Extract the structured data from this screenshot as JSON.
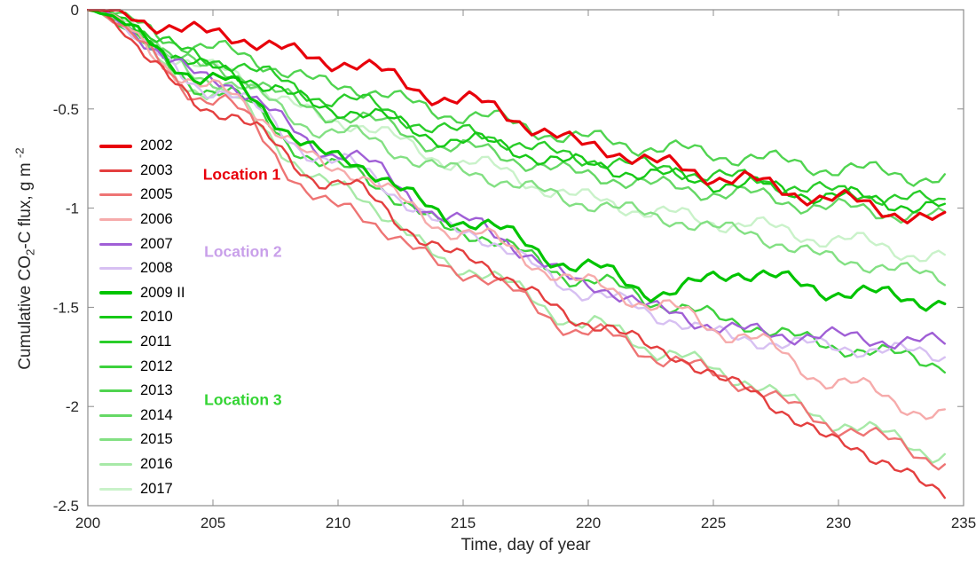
{
  "figure": {
    "background": "#ffffff"
  },
  "chart_data": {
    "type": "line",
    "title": "",
    "xlabel": "Time, day of year",
    "ylabel": "Cumulative CO2-C flux, g m-2",
    "ylabel_parts": {
      "pre": "Cumulative CO",
      "sub": "2",
      "mid": "-C flux, g m ",
      "sup": "-2"
    },
    "xlim": [
      200,
      235
    ],
    "ylim": [
      -2.5,
      0
    ],
    "xticks": [
      200,
      205,
      210,
      215,
      220,
      225,
      230,
      235
    ],
    "yticks": [
      0,
      -0.5,
      -1,
      -1.5,
      -2,
      -2.5
    ],
    "ytick_labels": [
      "0",
      "-0.5",
      "-1",
      "-1.5",
      "-2",
      "-2.5"
    ],
    "grid": false,
    "legend_position": "inside-left",
    "axis_color": "#8c8c8c",
    "tick_label_color": "#262626",
    "anchor_days": [
      200,
      205,
      210,
      215,
      220,
      223,
      226,
      230,
      234.3
    ],
    "series": [
      {
        "name": "2002",
        "color": "#e8000b",
        "width": 3.2,
        "values": [
          0,
          -0.12,
          -0.26,
          -0.46,
          -0.68,
          -0.78,
          -0.86,
          -0.96,
          -1.07
        ]
      },
      {
        "name": "2003",
        "color": "#e43f3f",
        "width": 2.4,
        "values": [
          0,
          -0.5,
          -0.88,
          -1.25,
          -1.57,
          -1.72,
          -1.9,
          -2.18,
          -2.43
        ]
      },
      {
        "name": "2005",
        "color": "#ee7474",
        "width": 2.4,
        "values": [
          0,
          -0.45,
          -1.0,
          -1.32,
          -1.62,
          -1.75,
          -1.88,
          -2.1,
          -2.27
        ]
      },
      {
        "name": "2006",
        "color": "#f6abab",
        "width": 2.4,
        "values": [
          0,
          -0.4,
          -0.8,
          -1.12,
          -1.38,
          -1.5,
          -1.64,
          -1.88,
          -2.05
        ]
      },
      {
        "name": "2007",
        "color": "#a05fd6",
        "width": 2.4,
        "values": [
          0,
          -0.35,
          -0.72,
          -1.07,
          -1.38,
          -1.52,
          -1.62,
          -1.65,
          -1.68
        ]
      },
      {
        "name": "2008",
        "color": "#d7c0f2",
        "width": 2.4,
        "values": [
          0,
          -0.4,
          -0.77,
          -1.12,
          -1.42,
          -1.55,
          -1.66,
          -1.7,
          -1.74
        ]
      },
      {
        "name": "2009 II",
        "color": "#00c400",
        "width": 3.2,
        "values": [
          0,
          -0.35,
          -0.75,
          -1.06,
          -1.3,
          -1.43,
          -1.32,
          -1.42,
          -1.47
        ]
      },
      {
        "name": "2010",
        "color": "#17c917",
        "width": 2.4,
        "values": [
          0,
          -0.3,
          -0.5,
          -0.66,
          -0.78,
          -0.84,
          -0.88,
          -0.94,
          -1.0
        ]
      },
      {
        "name": "2011",
        "color": "#2acd2a",
        "width": 2.4,
        "values": [
          0,
          -0.25,
          -0.45,
          -0.62,
          -0.75,
          -0.8,
          -0.85,
          -0.92,
          -0.97
        ]
      },
      {
        "name": "2012",
        "color": "#3dd13d",
        "width": 2.4,
        "values": [
          0,
          -0.4,
          -0.8,
          -1.12,
          -1.36,
          -1.48,
          -1.58,
          -1.7,
          -1.78
        ]
      },
      {
        "name": "2013",
        "color": "#50d450",
        "width": 2.4,
        "values": [
          0,
          -0.2,
          -0.38,
          -0.53,
          -0.65,
          -0.7,
          -0.74,
          -0.8,
          -0.85
        ]
      },
      {
        "name": "2014",
        "color": "#65d865",
        "width": 2.4,
        "values": [
          0,
          -0.3,
          -0.53,
          -0.7,
          -0.83,
          -0.89,
          -0.93,
          -1.0,
          -1.05
        ]
      },
      {
        "name": "2015",
        "color": "#83e083",
        "width": 2.4,
        "values": [
          0,
          -0.35,
          -0.62,
          -0.82,
          -0.97,
          -1.05,
          -1.12,
          -1.26,
          -1.35
        ]
      },
      {
        "name": "2016",
        "color": "#a7e9a7",
        "width": 2.4,
        "values": [
          0,
          -0.42,
          -0.9,
          -1.3,
          -1.58,
          -1.72,
          -1.86,
          -2.08,
          -2.24
        ]
      },
      {
        "name": "2017",
        "color": "#c9f2c9",
        "width": 2.4,
        "values": [
          0,
          -0.3,
          -0.56,
          -0.77,
          -0.95,
          -1.03,
          -1.08,
          -1.16,
          -1.25
        ]
      }
    ],
    "annotations": [
      {
        "text": "Location 1",
        "color": "#e8000b",
        "x": 204.6,
        "y": -0.83
      },
      {
        "text": "Location 2",
        "color": "#c9a0ea",
        "x": 204.65,
        "y": -1.22
      },
      {
        "text": "Location 3",
        "color": "#33d433",
        "x": 204.65,
        "y": -1.97
      }
    ]
  }
}
